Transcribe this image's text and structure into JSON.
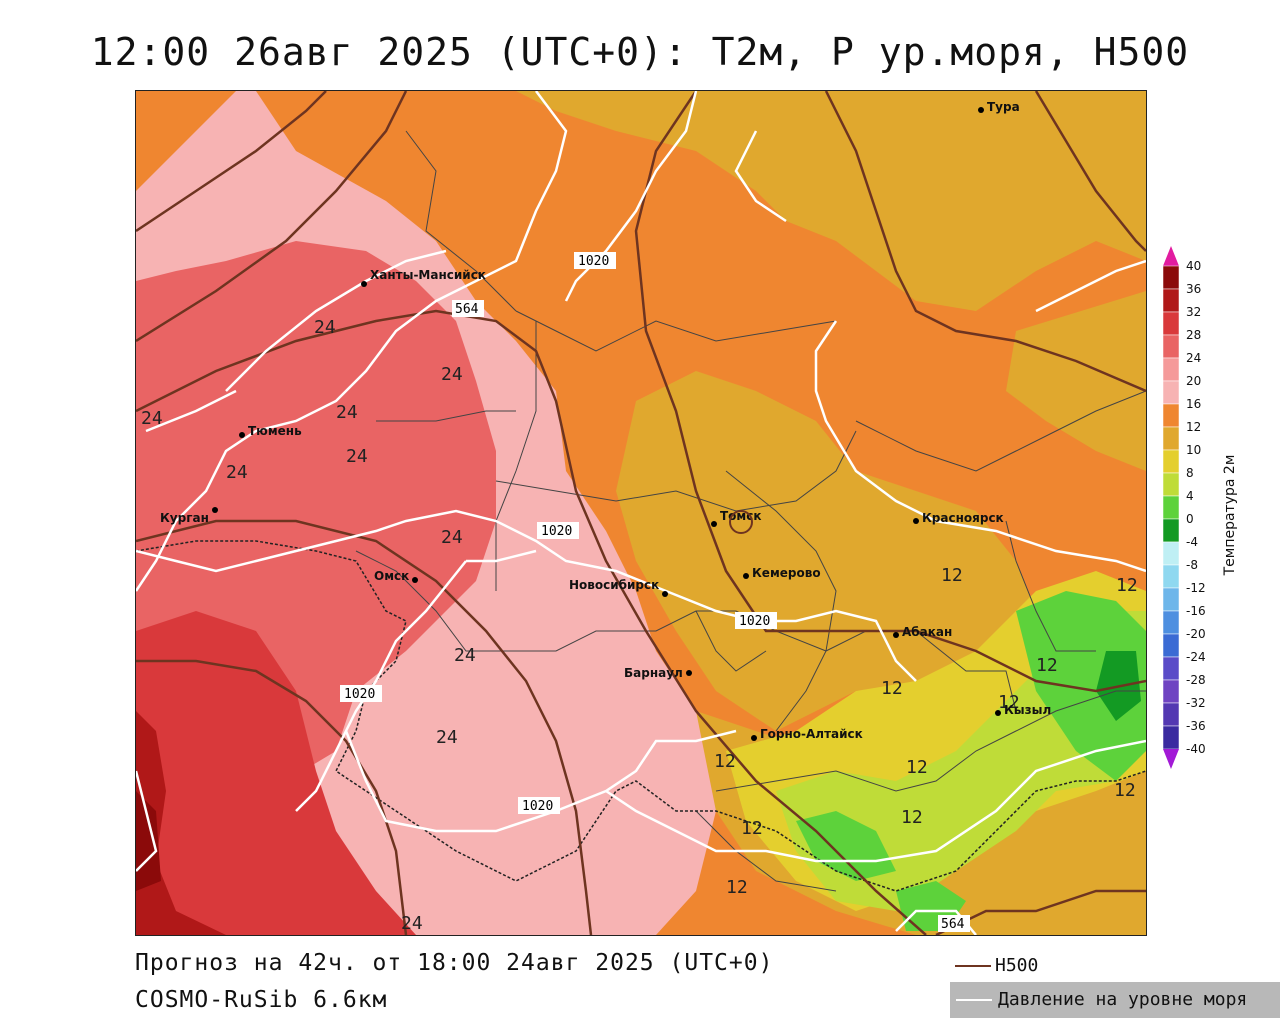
{
  "title": "12:00 26авг 2025 (UTC+0): T2м, P ур.моря, H500",
  "footer": {
    "forecast": "Прогноз на 42ч. от 18:00 24авг 2025 (UTC+0)",
    "model": "COSMO-RuSib 6.6км"
  },
  "legend": {
    "h500": "H500",
    "pressure": "Давление на уровне моря"
  },
  "colorbar": {
    "title": "Температура 2м",
    "ticks": [
      "40",
      "36",
      "32",
      "28",
      "24",
      "20",
      "16",
      "12",
      "10",
      "8",
      "4",
      "0",
      "-4",
      "-8",
      "-12",
      "-16",
      "-20",
      "-24",
      "-28",
      "-32",
      "-36",
      "-40"
    ],
    "colors": [
      "#8b0a0a",
      "#b01818",
      "#d9393b",
      "#e96464",
      "#f59a9a",
      "#f7b3b3",
      "#ef8630",
      "#e0a82e",
      "#e4cf2e",
      "#bfdc38",
      "#5dd23b",
      "#139a23",
      "#bfeff4",
      "#8fd8f0",
      "#6eb6ea",
      "#4e8fe0",
      "#3b6bd4",
      "#5a4cc8",
      "#6f44c2",
      "#5338b2",
      "#3a2aa0",
      "#281a8a"
    ],
    "top_color": "#e21ca0",
    "bottom_color": "#a21ad6"
  },
  "cities": [
    {
      "name": "Тура"
    },
    {
      "name": "Ханты-Мансийск"
    },
    {
      "name": "Тюмень"
    },
    {
      "name": "Курган"
    },
    {
      "name": "Омск"
    },
    {
      "name": "Новосибирск"
    },
    {
      "name": "Томск"
    },
    {
      "name": "Кемерово"
    },
    {
      "name": "Красноярск"
    },
    {
      "name": "Абакан"
    },
    {
      "name": "Барнаул"
    },
    {
      "name": "Горно-Алтайск"
    },
    {
      "name": "Кызыл"
    }
  ],
  "contour_labels": {
    "pressure": [
      "1020",
      "1020",
      "1020",
      "1020",
      "1020"
    ],
    "h500": [
      "564",
      "564"
    ],
    "temperature": [
      "24",
      "24",
      "24",
      "24",
      "24",
      "24",
      "24",
      "24",
      "24",
      "24",
      "12",
      "12",
      "12",
      "12",
      "12",
      "12",
      "12",
      "12",
      "12",
      "12",
      "12"
    ]
  }
}
